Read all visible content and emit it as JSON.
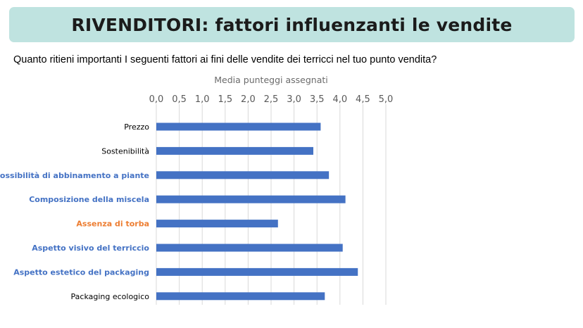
{
  "title": "RIVENDITORI: fattori influenzanti le vendite",
  "question": "Quanto ritieni importanti I seguenti fattori ai fini delle vendite dei terricci nel tuo punto vendita?",
  "colors": {
    "banner": "#bfe3e0",
    "bar": "#4472c4",
    "gridline": "#d9d9d9",
    "label_default": "#000000",
    "label_blue": "#4472c4",
    "label_orange": "#ed7d31"
  },
  "chart_data": {
    "type": "bar",
    "orientation": "horizontal",
    "xlabel": "Media punteggi assegnati",
    "ylabel": "",
    "xlim": [
      0,
      5
    ],
    "ticks": [
      "0,0",
      "0,5",
      "1,0",
      "1,5",
      "2,0",
      "2,5",
      "3,0",
      "3,5",
      "4,0",
      "4,5",
      "5,0"
    ],
    "axis_position": "top",
    "grid": true,
    "categories": [
      "Prezzo",
      "Sostenibilità",
      "Possibilità di abbinamento a piante",
      "Composizione della miscela",
      "Assenza di torba",
      "Aspetto visivo del terriccio",
      "Aspetto estetico del packaging",
      "Packaging ecologico"
    ],
    "values": [
      3.58,
      3.42,
      3.76,
      4.12,
      2.65,
      4.06,
      4.39,
      3.67
    ],
    "label_styles": [
      "default",
      "default",
      "blue",
      "blue",
      "orange",
      "blue",
      "blue",
      "default"
    ]
  }
}
